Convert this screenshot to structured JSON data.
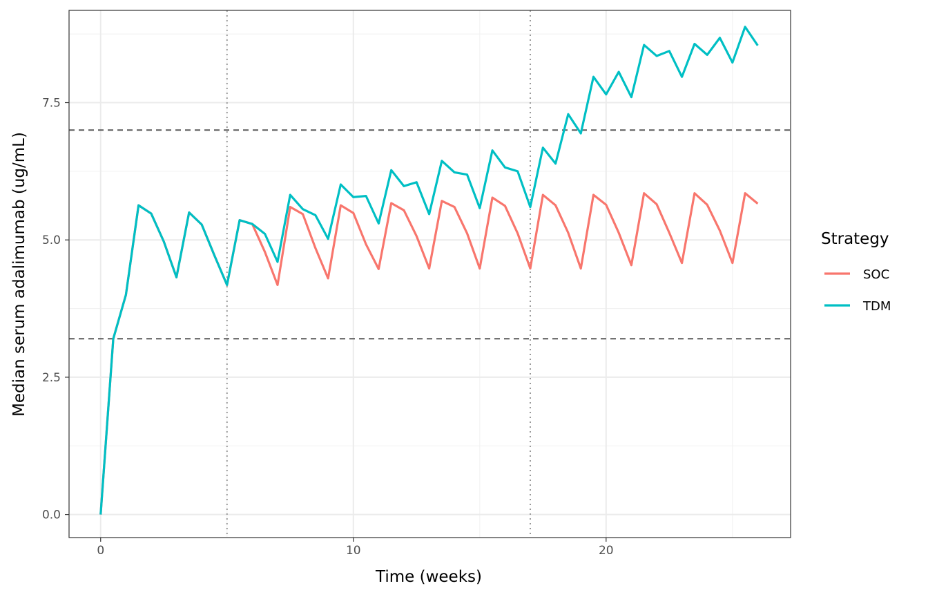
{
  "chart_data": {
    "type": "line",
    "title": "",
    "xlabel": "Time (weeks)",
    "ylabel": "Median serum adalimumab (ug/mL)",
    "xlim": [
      -1.25,
      27.3
    ],
    "ylim": [
      -0.42,
      9.18
    ],
    "x_ticks": [
      0,
      10,
      20
    ],
    "x_tick_labels": [
      "0",
      "10",
      "20"
    ],
    "y_ticks": [
      0,
      2.5,
      5,
      7.5
    ],
    "y_tick_labels": [
      "0.0",
      "2.5",
      "5.0",
      "7.5"
    ],
    "grid": true,
    "hlines": [
      3.2,
      7.0
    ],
    "vlines": [
      5,
      17
    ],
    "legend": {
      "title": "Strategy",
      "position": "right",
      "entries": [
        "SOC",
        "TDM"
      ]
    },
    "series": [
      {
        "name": "SOC",
        "color": "#F8766D",
        "x": [
          0,
          0.5,
          1,
          1.5,
          2,
          2.5,
          3,
          3.5,
          4,
          4.5,
          5,
          5.5,
          6,
          6.5,
          7,
          7.5,
          8,
          8.5,
          9,
          9.5,
          10,
          10.5,
          11,
          11.5,
          12,
          12.5,
          13,
          13.5,
          14,
          14.5,
          15,
          15.5,
          16,
          16.5,
          17,
          17.5,
          18,
          18.5,
          19,
          19.5,
          20,
          20.5,
          21,
          21.5,
          22,
          22.5,
          23,
          23.5,
          24,
          24.5,
          25,
          25.5,
          26
        ],
        "y": [
          0.0,
          3.2,
          4.0,
          5.63,
          5.48,
          4.97,
          4.32,
          5.5,
          5.28,
          4.72,
          4.18,
          5.36,
          5.29,
          4.78,
          4.18,
          5.6,
          5.47,
          4.85,
          4.3,
          5.63,
          5.49,
          4.92,
          4.47,
          5.67,
          5.54,
          5.07,
          4.48,
          5.71,
          5.6,
          5.12,
          4.48,
          5.77,
          5.62,
          5.12,
          4.48,
          5.82,
          5.63,
          5.13,
          4.48,
          5.82,
          5.64,
          5.13,
          4.54,
          5.85,
          5.65,
          5.13,
          4.58,
          5.85,
          5.64,
          5.17,
          4.58,
          5.85,
          5.66
        ]
      },
      {
        "name": "TDM",
        "color": "#00BFC4",
        "x": [
          0,
          0.5,
          1,
          1.5,
          2,
          2.5,
          3,
          3.5,
          4,
          4.5,
          5,
          5.5,
          6,
          6.5,
          7,
          7.5,
          8,
          8.5,
          9,
          9.5,
          10,
          10.5,
          11,
          11.5,
          12,
          12.5,
          13,
          13.5,
          14,
          14.5,
          15,
          15.5,
          16,
          16.5,
          17,
          17.5,
          18,
          18.5,
          19,
          19.5,
          20,
          20.5,
          21,
          21.5,
          22,
          22.5,
          23,
          23.5,
          24,
          24.5,
          25,
          25.5,
          26
        ],
        "y": [
          0.0,
          3.2,
          4.0,
          5.63,
          5.48,
          4.97,
          4.32,
          5.5,
          5.28,
          4.72,
          4.18,
          5.36,
          5.29,
          5.11,
          4.6,
          5.82,
          5.56,
          5.45,
          5.02,
          6.01,
          5.78,
          5.8,
          5.3,
          6.27,
          5.98,
          6.05,
          5.47,
          6.44,
          6.23,
          6.19,
          5.58,
          6.63,
          6.32,
          6.25,
          5.6,
          6.68,
          6.39,
          7.29,
          6.94,
          7.97,
          7.65,
          8.06,
          7.6,
          8.55,
          8.35,
          8.44,
          7.97,
          8.57,
          8.37,
          8.68,
          8.23,
          8.88,
          8.54
        ]
      }
    ]
  }
}
